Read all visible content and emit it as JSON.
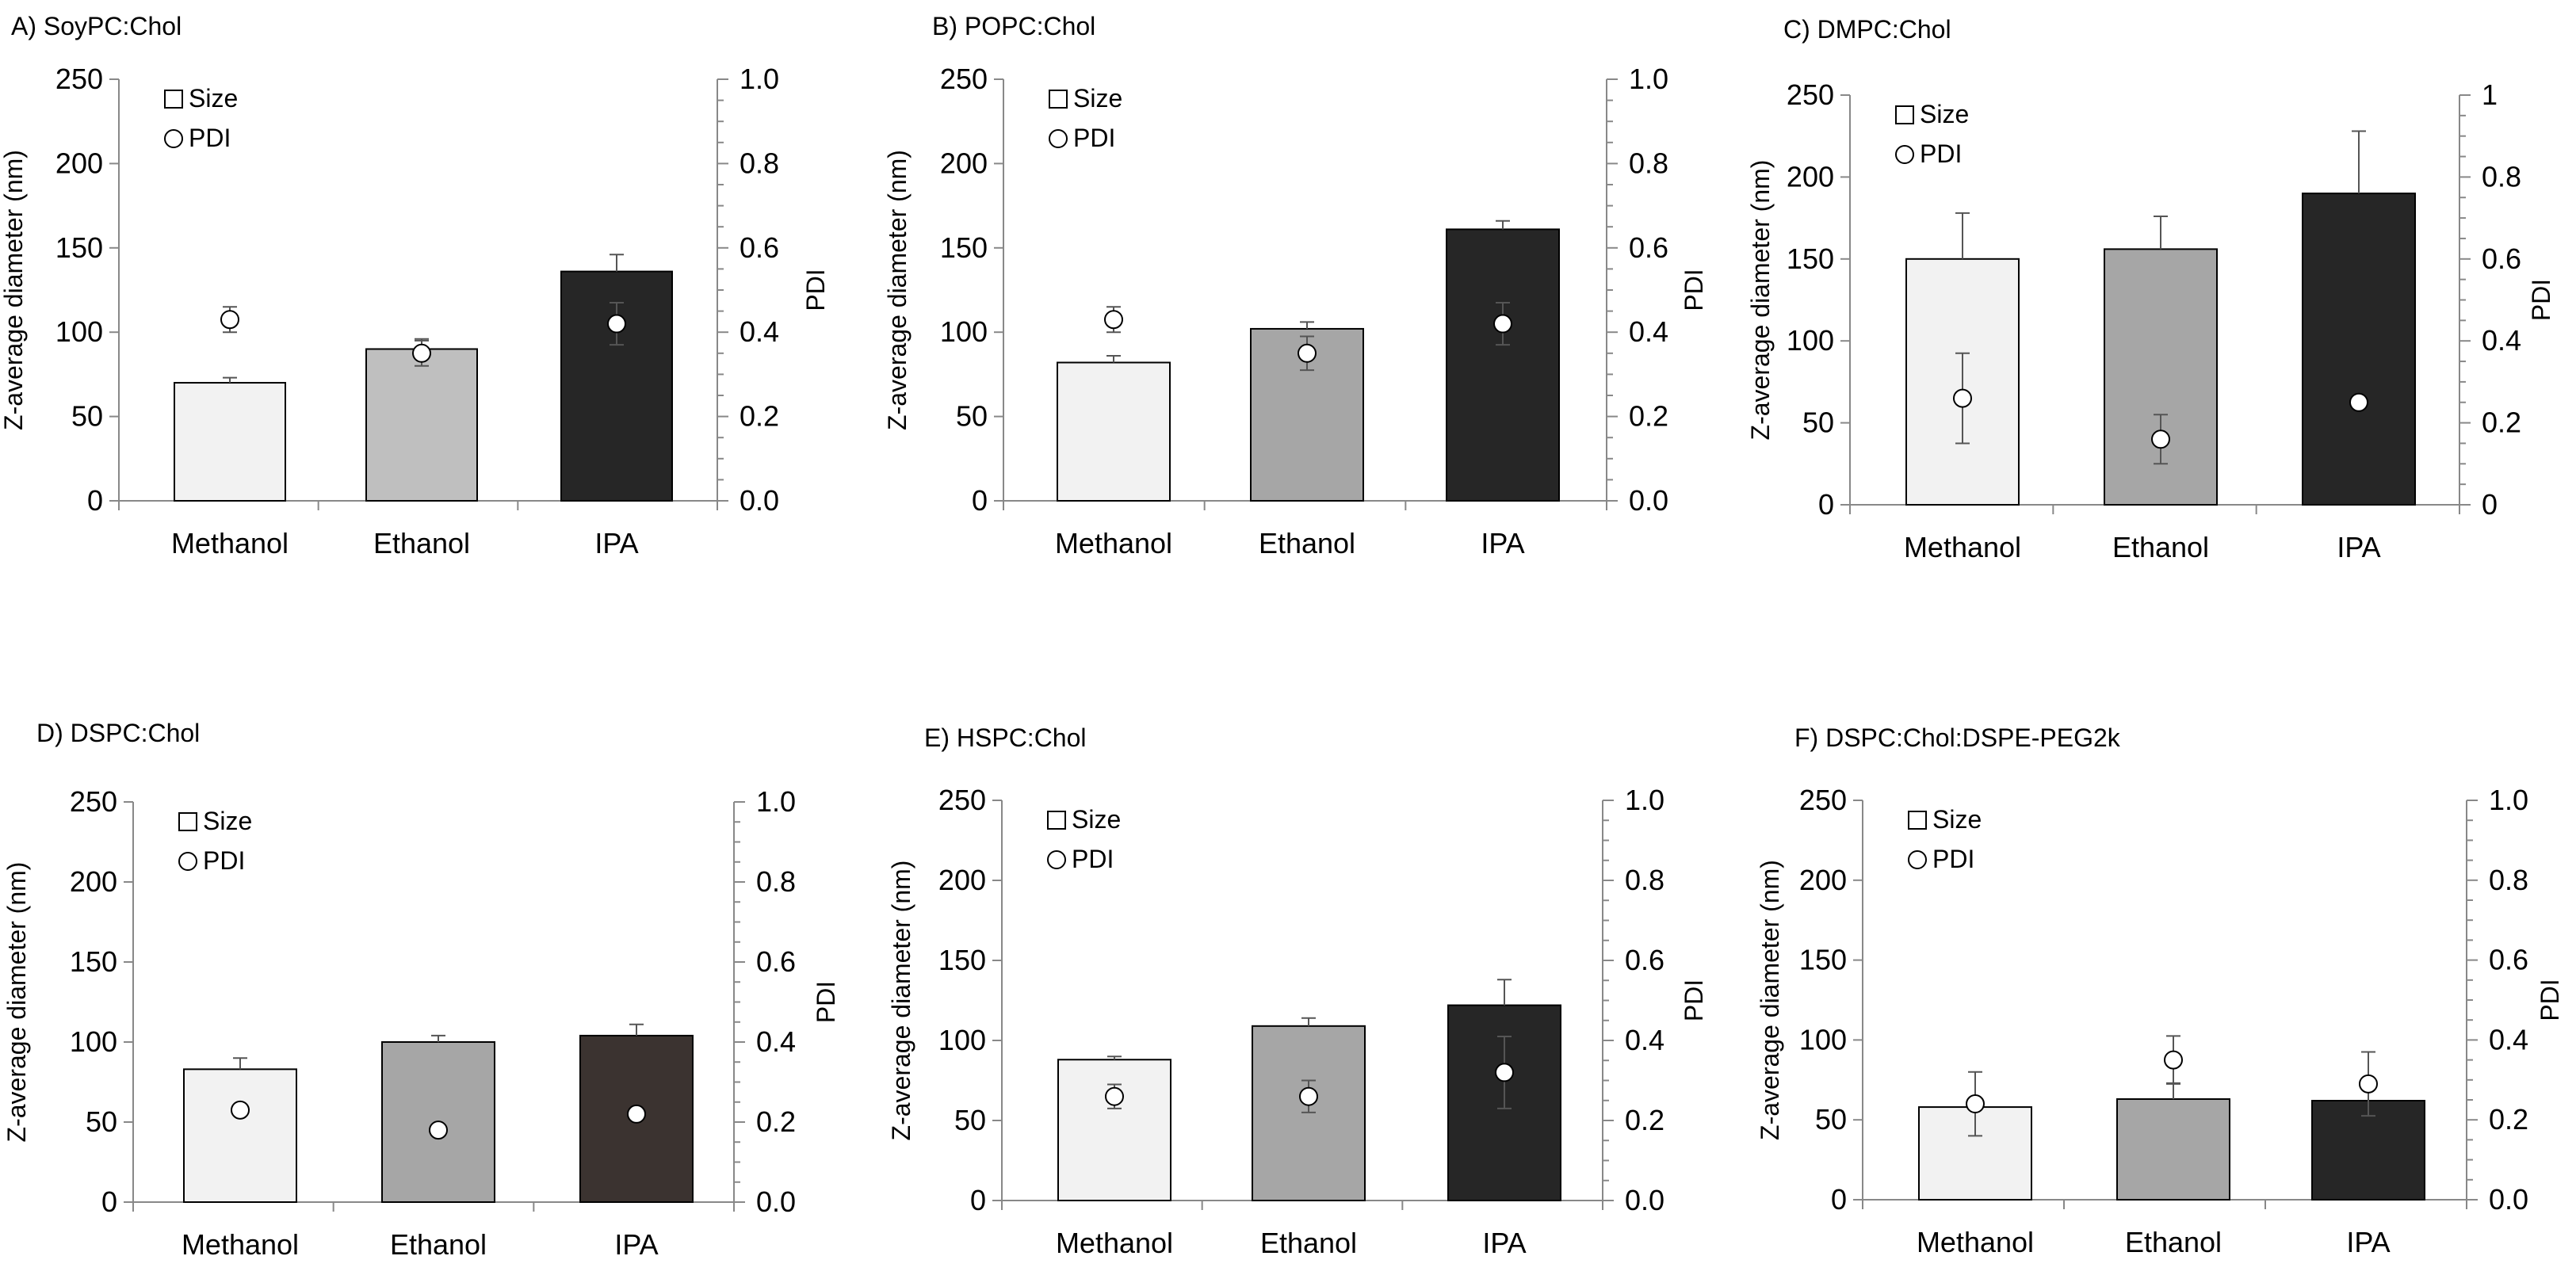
{
  "chart_data": [
    {
      "type": "bar",
      "title": "A) SoyPC:Chol",
      "categories": [
        "Methanol",
        "Ethanol",
        "IPA"
      ],
      "bar_colors": [
        "#f2f2f2",
        "#bfbfbf",
        "#262626"
      ],
      "series": [
        {
          "name": "Size",
          "axis": "left",
          "values": [
            70,
            90,
            136
          ],
          "errors": [
            3,
            6,
            10
          ]
        },
        {
          "name": "PDI",
          "axis": "right",
          "values": [
            0.43,
            0.35,
            0.42
          ],
          "errors": [
            0.03,
            0.03,
            0.05
          ],
          "marker_fills": [
            "#ffffff",
            "#ffffff",
            "#ffffff"
          ]
        }
      ],
      "ylabel": "Z-average diameter (nm)",
      "y2label": "PDI",
      "ylim": [
        0,
        250
      ],
      "y2lim": [
        0,
        1.0
      ],
      "yticks": [
        "0",
        "50",
        "100",
        "150",
        "200",
        "250"
      ],
      "y2ticks": [
        "0.0",
        "0.2",
        "0.4",
        "0.6",
        "0.8",
        "1.0"
      ],
      "legend": [
        {
          "label": "Size",
          "marker": "square"
        },
        {
          "label": "PDI",
          "marker": "circle"
        }
      ]
    },
    {
      "type": "bar",
      "title": "B) POPC:Chol",
      "categories": [
        "Methanol",
        "Ethanol",
        "IPA"
      ],
      "bar_colors": [
        "#f2f2f2",
        "#a6a6a6",
        "#262626"
      ],
      "series": [
        {
          "name": "Size",
          "axis": "left",
          "values": [
            82,
            102,
            161
          ],
          "errors": [
            4,
            4,
            5
          ]
        },
        {
          "name": "PDI",
          "axis": "right",
          "values": [
            0.43,
            0.35,
            0.42
          ],
          "errors": [
            0.03,
            0.04,
            0.05
          ],
          "marker_fills": [
            "#ffffff",
            "#ffffff",
            "#ffffff"
          ]
        }
      ],
      "ylabel": "Z-average diameter (nm)",
      "y2label": "PDI",
      "ylim": [
        0,
        250
      ],
      "y2lim": [
        0,
        1.0
      ],
      "yticks": [
        "0",
        "50",
        "100",
        "150",
        "200",
        "250"
      ],
      "y2ticks": [
        "0.0",
        "0.2",
        "0.4",
        "0.6",
        "0.8",
        "1.0"
      ],
      "legend": [
        {
          "label": "Size",
          "marker": "square"
        },
        {
          "label": "PDI",
          "marker": "circle"
        }
      ]
    },
    {
      "type": "bar",
      "title": "C) DMPC:Chol",
      "categories": [
        "Methanol",
        "Ethanol",
        "IPA"
      ],
      "bar_colors": [
        "#f2f2f2",
        "#a6a6a6",
        "#262626"
      ],
      "series": [
        {
          "name": "Size",
          "axis": "left",
          "values": [
            150,
            156,
            190
          ],
          "errors": [
            28,
            20,
            38
          ]
        },
        {
          "name": "PDI",
          "axis": "right",
          "values": [
            0.26,
            0.16,
            0.25
          ],
          "errors": [
            0.11,
            0.06,
            0
          ],
          "marker_fills": [
            "#ffffff",
            "#ffffff",
            "#ffffff"
          ]
        }
      ],
      "ylabel": "Z-average diameter (nm)",
      "y2label": "PDI",
      "ylim": [
        0,
        250
      ],
      "y2lim": [
        0,
        1
      ],
      "yticks": [
        "0",
        "50",
        "100",
        "150",
        "200",
        "250"
      ],
      "y2ticks": [
        "0",
        "0.2",
        "0.4",
        "0.6",
        "0.8",
        "1"
      ],
      "legend": [
        {
          "label": "Size",
          "marker": "square"
        },
        {
          "label": "PDI",
          "marker": "circle"
        }
      ]
    },
    {
      "type": "bar",
      "title": "D) DSPC:Chol",
      "categories": [
        "Methanol",
        "Ethanol",
        "IPA"
      ],
      "bar_colors": [
        "#f2f2f2",
        "#a6a6a6",
        "#3b3330"
      ],
      "series": [
        {
          "name": "Size",
          "axis": "left",
          "values": [
            83,
            100,
            104
          ],
          "errors": [
            7,
            4,
            7
          ]
        },
        {
          "name": "PDI",
          "axis": "right",
          "values": [
            0.23,
            0.18,
            0.22
          ],
          "errors": [
            0,
            0,
            0
          ],
          "marker_fills": [
            "#ffffff",
            "#ffffff",
            "#ffffff"
          ]
        }
      ],
      "ylabel": "Z-average diameter (nm)",
      "y2label": "PDI",
      "ylim": [
        0,
        250
      ],
      "y2lim": [
        0,
        1.0
      ],
      "yticks": [
        "0",
        "50",
        "100",
        "150",
        "200",
        "250"
      ],
      "y2ticks": [
        "0.0",
        "0.2",
        "0.4",
        "0.6",
        "0.8",
        "1.0"
      ],
      "legend": [
        {
          "label": "Size",
          "marker": "square"
        },
        {
          "label": "PDI",
          "marker": "circle"
        }
      ]
    },
    {
      "type": "bar",
      "title": "E) HSPC:Chol",
      "categories": [
        "Methanol",
        "Ethanol",
        "IPA"
      ],
      "bar_colors": [
        "#f2f2f2",
        "#a6a6a6",
        "#262626"
      ],
      "series": [
        {
          "name": "Size",
          "axis": "left",
          "values": [
            88,
            109,
            122
          ],
          "errors": [
            2,
            5,
            16
          ]
        },
        {
          "name": "PDI",
          "axis": "right",
          "values": [
            0.26,
            0.26,
            0.32
          ],
          "errors": [
            0.03,
            0.04,
            0.09
          ],
          "marker_fills": [
            "#ffffff",
            "#ffffff",
            "#ffffff"
          ]
        }
      ],
      "ylabel": "Z-average diameter (nm)",
      "y2label": "PDI",
      "ylim": [
        0,
        250
      ],
      "y2lim": [
        0,
        1.0
      ],
      "yticks": [
        "0",
        "50",
        "100",
        "150",
        "200",
        "250"
      ],
      "y2ticks": [
        "0.0",
        "0.2",
        "0.4",
        "0.6",
        "0.8",
        "1.0"
      ],
      "legend": [
        {
          "label": "Size",
          "marker": "square"
        },
        {
          "label": "PDI",
          "marker": "circle"
        }
      ]
    },
    {
      "type": "bar",
      "title": "F) DSPC:Chol:DSPE-PEG2k",
      "categories": [
        "Methanol",
        "Ethanol",
        "IPA"
      ],
      "bar_colors": [
        "#f2f2f2",
        "#a6a6a6",
        "#262626"
      ],
      "series": [
        {
          "name": "Size",
          "axis": "left",
          "values": [
            58,
            63,
            62
          ],
          "errors": [
            0,
            10,
            0
          ]
        },
        {
          "name": "PDI",
          "axis": "right",
          "values": [
            0.24,
            0.35,
            0.29
          ],
          "errors": [
            0.08,
            0.06,
            0.08
          ],
          "marker_fills": [
            "#ffffff",
            "#ffffff",
            "#ffffff"
          ]
        }
      ],
      "ylabel": "Z-average diameter (nm)",
      "y2label": "PDI",
      "ylim": [
        0,
        250
      ],
      "y2lim": [
        0,
        1.0
      ],
      "yticks": [
        "0",
        "50",
        "100",
        "150",
        "200",
        "250"
      ],
      "y2ticks": [
        "0.0",
        "0.2",
        "0.4",
        "0.6",
        "0.8",
        "1.0"
      ],
      "legend": [
        {
          "label": "Size",
          "marker": "square"
        },
        {
          "label": "PDI",
          "marker": "circle"
        }
      ]
    }
  ]
}
